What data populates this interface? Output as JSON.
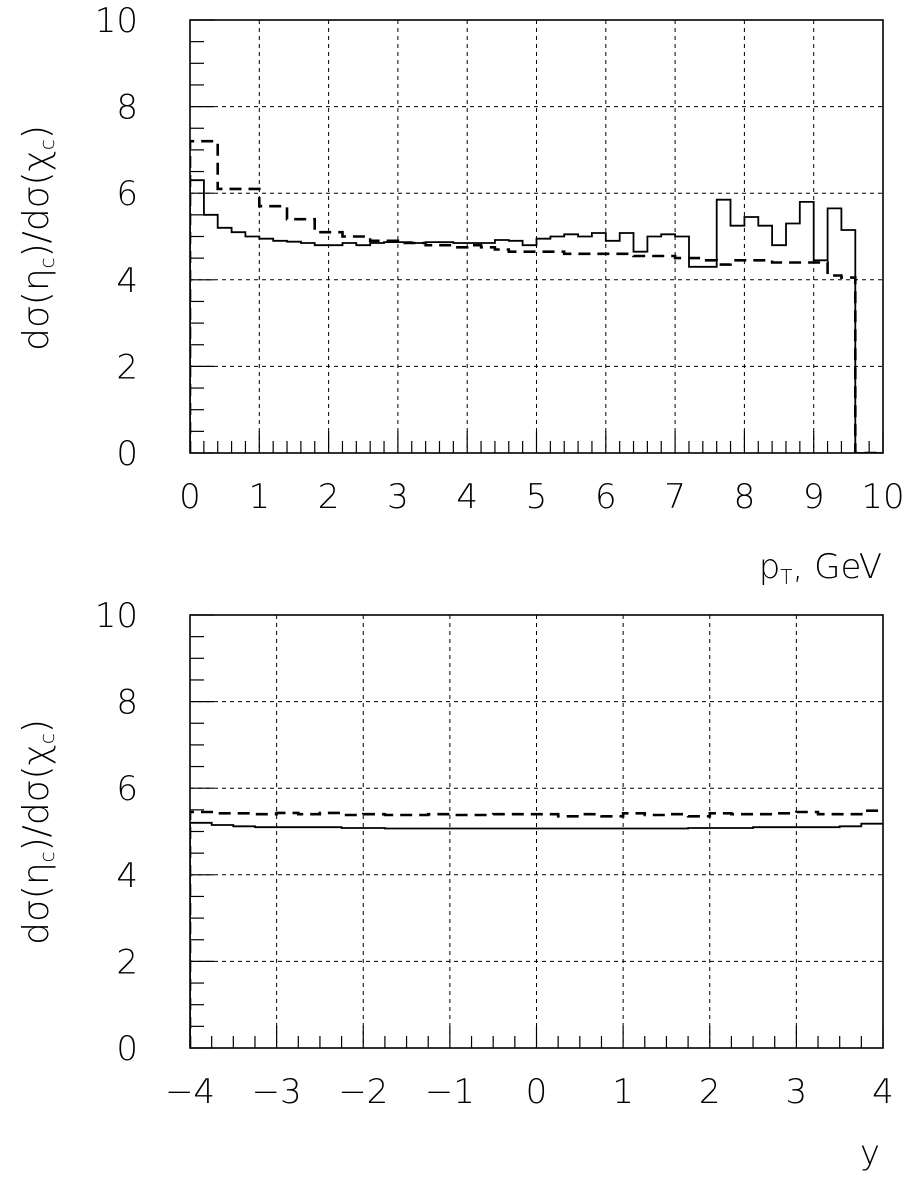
{
  "chart_data": [
    {
      "type": "line",
      "step": true,
      "ylabel": "dσ(η",
      "ylabel_sub1": "c",
      "ylabel_mid": ")/dσ(χ",
      "ylabel_sub2": "c",
      "ylabel_end": ")",
      "xlabel": "p",
      "xlabel_sub": "T",
      "xlabel_end": ", GeV",
      "xlim": [
        0,
        10
      ],
      "ylim": [
        0,
        10
      ],
      "grid": true,
      "x_ticks": [
        "0",
        "1",
        "2",
        "3",
        "4",
        "5",
        "6",
        "7",
        "8",
        "9",
        "10"
      ],
      "y_ticks": [
        "0",
        "2",
        "4",
        "6",
        "8",
        "10"
      ],
      "x_minor_step": 0.2,
      "y_minor_step": 0.5,
      "series": [
        {
          "style": "solid",
          "x": [
            0,
            0.2,
            0.4,
            0.6,
            0.8,
            1.0,
            1.2,
            1.4,
            1.6,
            1.8,
            2.0,
            2.2,
            2.4,
            2.6,
            2.8,
            3.0,
            3.2,
            3.4,
            3.6,
            3.8,
            4.0,
            4.2,
            4.4,
            4.6,
            4.8,
            5.0,
            5.2,
            5.4,
            5.6,
            5.8,
            6.0,
            6.2,
            6.4,
            6.6,
            6.8,
            7.0,
            7.2,
            7.4,
            7.6,
            7.8,
            8.0,
            8.2,
            8.4,
            8.6,
            8.8,
            9.0,
            9.2,
            9.4,
            9.6,
            9.8,
            10.0
          ],
          "values": [
            6.3,
            5.5,
            5.2,
            5.1,
            5.0,
            4.95,
            4.9,
            4.88,
            4.85,
            4.8,
            4.8,
            4.85,
            4.8,
            4.85,
            4.87,
            4.87,
            4.85,
            4.87,
            4.87,
            4.85,
            4.85,
            4.85,
            4.92,
            4.9,
            4.8,
            4.95,
            5.0,
            5.05,
            5.0,
            5.08,
            4.9,
            5.08,
            4.65,
            5.0,
            5.05,
            5.0,
            4.3,
            4.3,
            5.85,
            5.25,
            5.45,
            5.25,
            4.8,
            5.3,
            5.8,
            4.45,
            5.65,
            5.15,
            0.0,
            0.0,
            0.0
          ]
        },
        {
          "style": "dashed",
          "x": [
            0,
            0.2,
            0.4,
            0.6,
            0.8,
            1.0,
            1.2,
            1.4,
            1.6,
            1.8,
            2.0,
            2.2,
            2.4,
            2.6,
            2.8,
            3.0,
            3.2,
            3.4,
            3.6,
            3.8,
            4.0,
            4.2,
            4.4,
            4.6,
            4.8,
            5.0,
            5.2,
            5.4,
            5.6,
            5.8,
            6.0,
            6.2,
            6.4,
            6.6,
            6.8,
            7.0,
            7.2,
            7.4,
            7.6,
            7.8,
            8.0,
            8.2,
            8.4,
            8.6,
            8.8,
            9.0,
            9.2,
            9.4,
            9.6,
            9.8,
            10.0
          ],
          "values": [
            7.2,
            7.2,
            6.1,
            6.1,
            6.1,
            5.7,
            5.7,
            5.4,
            5.4,
            5.1,
            5.1,
            5.0,
            5.0,
            4.9,
            4.9,
            4.85,
            4.85,
            4.8,
            4.8,
            4.75,
            4.8,
            4.75,
            4.7,
            4.65,
            4.65,
            4.65,
            4.65,
            4.6,
            4.6,
            4.6,
            4.6,
            4.6,
            4.55,
            4.55,
            4.55,
            4.5,
            4.5,
            4.45,
            4.35,
            4.45,
            4.45,
            4.45,
            4.4,
            4.4,
            4.4,
            4.4,
            4.1,
            4.05,
            0.0,
            0.0,
            0.0
          ]
        }
      ]
    },
    {
      "type": "line",
      "step": true,
      "ylabel": "dσ(η",
      "ylabel_sub1": "c",
      "ylabel_mid": ")/dσ(χ",
      "ylabel_sub2": "c",
      "ylabel_end": ")",
      "xlabel": "y",
      "xlim": [
        -4,
        4
      ],
      "ylim": [
        0,
        10
      ],
      "grid": true,
      "x_ticks": [
        "−4",
        "−3",
        "−2",
        "−1",
        "0",
        "1",
        "2",
        "3",
        "4"
      ],
      "y_ticks": [
        "0",
        "2",
        "4",
        "6",
        "8",
        "10"
      ],
      "x_minor_step": 0.25,
      "y_minor_step": 0.5,
      "series": [
        {
          "style": "solid",
          "x": [
            -4.0,
            -3.75,
            -3.5,
            -3.25,
            -3.0,
            -2.75,
            -2.5,
            -2.25,
            -2.0,
            -1.75,
            -1.5,
            -1.25,
            -1.0,
            -0.75,
            -0.5,
            -0.25,
            0.0,
            0.25,
            0.5,
            0.75,
            1.0,
            1.25,
            1.5,
            1.75,
            2.0,
            2.25,
            2.5,
            2.75,
            3.0,
            3.25,
            3.5,
            3.75,
            4.0
          ],
          "values": [
            5.2,
            5.15,
            5.12,
            5.1,
            5.1,
            5.1,
            5.1,
            5.08,
            5.08,
            5.07,
            5.07,
            5.07,
            5.07,
            5.07,
            5.07,
            5.07,
            5.07,
            5.07,
            5.07,
            5.07,
            5.07,
            5.07,
            5.07,
            5.08,
            5.08,
            5.08,
            5.1,
            5.1,
            5.1,
            5.1,
            5.12,
            5.18,
            5.2
          ]
        },
        {
          "style": "dashed",
          "x": [
            -4.0,
            -3.75,
            -3.5,
            -3.25,
            -3.0,
            -2.75,
            -2.5,
            -2.25,
            -2.0,
            -1.75,
            -1.5,
            -1.25,
            -1.0,
            -0.75,
            -0.5,
            -0.25,
            0.0,
            0.25,
            0.5,
            0.75,
            1.0,
            1.25,
            1.5,
            1.75,
            2.0,
            2.25,
            2.5,
            2.75,
            3.0,
            3.25,
            3.5,
            3.75,
            4.0
          ],
          "values": [
            5.45,
            5.42,
            5.42,
            5.4,
            5.43,
            5.4,
            5.43,
            5.38,
            5.4,
            5.38,
            5.38,
            5.4,
            5.38,
            5.38,
            5.4,
            5.4,
            5.4,
            5.35,
            5.4,
            5.35,
            5.42,
            5.38,
            5.4,
            5.35,
            5.42,
            5.4,
            5.4,
            5.42,
            5.45,
            5.4,
            5.4,
            5.48,
            5.5
          ]
        }
      ]
    }
  ]
}
